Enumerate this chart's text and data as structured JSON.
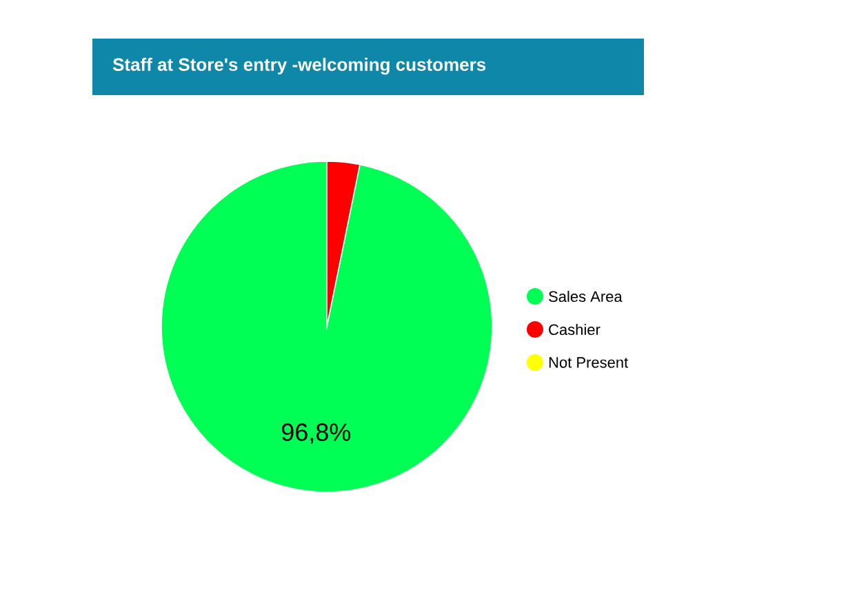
{
  "chart_data": {
    "type": "pie",
    "title": "Staff at Store's entry -welcoming customers",
    "categories": [
      "Sales Area",
      "Cashier",
      "Not Present"
    ],
    "values": [
      96.8,
      3.2,
      0
    ],
    "colors": [
      "#00ff55",
      "#ff0000",
      "#ffff00"
    ],
    "value_labels": [
      "96,8%",
      null,
      null
    ],
    "legend": "right"
  }
}
